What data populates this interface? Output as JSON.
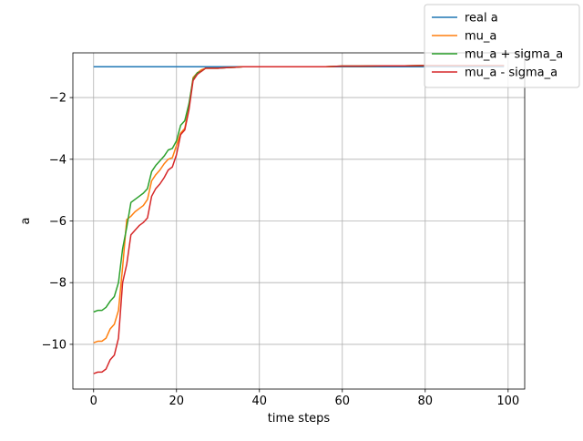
{
  "chart_data": {
    "type": "line",
    "title": "",
    "xlabel": "time steps",
    "ylabel": "a",
    "xlim": [
      -5,
      104
    ],
    "ylim": [
      -11.45,
      -0.55
    ],
    "xticks": [
      0,
      20,
      40,
      60,
      80,
      100
    ],
    "yticks": [
      -10,
      -8,
      -6,
      -4,
      -2
    ],
    "xtick_labels": [
      "0",
      "20",
      "40",
      "60",
      "80",
      "100"
    ],
    "ytick_labels": [
      "−10",
      "−8",
      "−6",
      "−4",
      "−2"
    ],
    "grid": true,
    "legend_position": "top-right",
    "series": [
      {
        "name": "real a",
        "color": "#1f77b4",
        "x": [
          0,
          99
        ],
        "y": [
          -1.0,
          -1.0
        ]
      },
      {
        "name": "mu_a",
        "color": "#ff7f0e",
        "x": [
          0,
          1,
          2,
          3,
          4,
          5,
          6,
          7,
          8,
          9,
          10,
          11,
          12,
          13,
          14,
          15,
          16,
          17,
          18,
          19,
          20,
          21,
          22,
          23,
          24,
          25,
          26,
          27,
          28,
          30,
          32,
          34,
          36,
          40,
          44,
          48,
          52,
          56,
          60,
          64,
          70,
          75,
          80,
          85,
          90,
          95,
          99
        ],
        "y": [
          -9.95,
          -9.9,
          -9.9,
          -9.8,
          -9.5,
          -9.35,
          -8.9,
          -7.5,
          -5.95,
          -5.85,
          -5.7,
          -5.6,
          -5.5,
          -5.3,
          -4.7,
          -4.5,
          -4.35,
          -4.15,
          -4.0,
          -3.95,
          -3.55,
          -3.15,
          -3.0,
          -2.3,
          -1.35,
          -1.2,
          -1.1,
          -1.05,
          -1.05,
          -1.05,
          -1.03,
          -1.02,
          -1.0,
          -1.0,
          -1.0,
          -1.0,
          -1.0,
          -1.0,
          -0.98,
          -0.98,
          -0.97,
          -0.97,
          -0.96,
          -0.96,
          -0.96,
          -0.96,
          -0.96
        ]
      },
      {
        "name": "mu_a + sigma_a",
        "color": "#2ca02c",
        "x": [
          0,
          1,
          2,
          3,
          4,
          5,
          6,
          7,
          8,
          9,
          10,
          11,
          12,
          13,
          14,
          15,
          16,
          17,
          18,
          19,
          20,
          21,
          22,
          23,
          24,
          25,
          26,
          27,
          28,
          30,
          32,
          34,
          36,
          40,
          44,
          48,
          52,
          56,
          60,
          64,
          70,
          75,
          80,
          85,
          90,
          95,
          99
        ],
        "y": [
          -8.95,
          -8.9,
          -8.9,
          -8.8,
          -8.6,
          -8.45,
          -8.0,
          -6.9,
          -6.2,
          -5.4,
          -5.3,
          -5.2,
          -5.1,
          -4.95,
          -4.4,
          -4.2,
          -4.05,
          -3.9,
          -3.7,
          -3.65,
          -3.4,
          -2.9,
          -2.75,
          -2.2,
          -1.4,
          -1.2,
          -1.15,
          -1.05,
          -1.05,
          -1.05,
          -1.03,
          -1.02,
          -1.0,
          -1.0,
          -1.0,
          -1.0,
          -1.0,
          -1.0,
          -0.98,
          -0.98,
          -0.97,
          -0.97,
          -0.96,
          -0.96,
          -0.96,
          -0.96,
          -0.96
        ]
      },
      {
        "name": "mu_a - sigma_a",
        "color": "#d62728",
        "x": [
          0,
          1,
          2,
          3,
          4,
          5,
          6,
          7,
          8,
          9,
          10,
          11,
          12,
          13,
          14,
          15,
          16,
          17,
          18,
          19,
          20,
          21,
          22,
          23,
          24,
          25,
          26,
          27,
          28,
          30,
          32,
          34,
          36,
          40,
          44,
          48,
          52,
          56,
          60,
          64,
          70,
          75,
          80,
          85,
          90,
          95,
          99
        ],
        "y": [
          -10.95,
          -10.9,
          -10.9,
          -10.8,
          -10.5,
          -10.35,
          -9.8,
          -8.0,
          -7.4,
          -6.45,
          -6.3,
          -6.15,
          -6.05,
          -5.9,
          -5.2,
          -4.95,
          -4.8,
          -4.6,
          -4.35,
          -4.25,
          -3.85,
          -3.2,
          -3.05,
          -2.4,
          -1.45,
          -1.25,
          -1.15,
          -1.05,
          -1.05,
          -1.05,
          -1.03,
          -1.02,
          -1.0,
          -1.0,
          -1.0,
          -1.0,
          -1.0,
          -1.0,
          -0.98,
          -0.98,
          -0.97,
          -0.97,
          -0.96,
          -0.96,
          -0.96,
          -0.96,
          -0.96
        ]
      }
    ]
  }
}
